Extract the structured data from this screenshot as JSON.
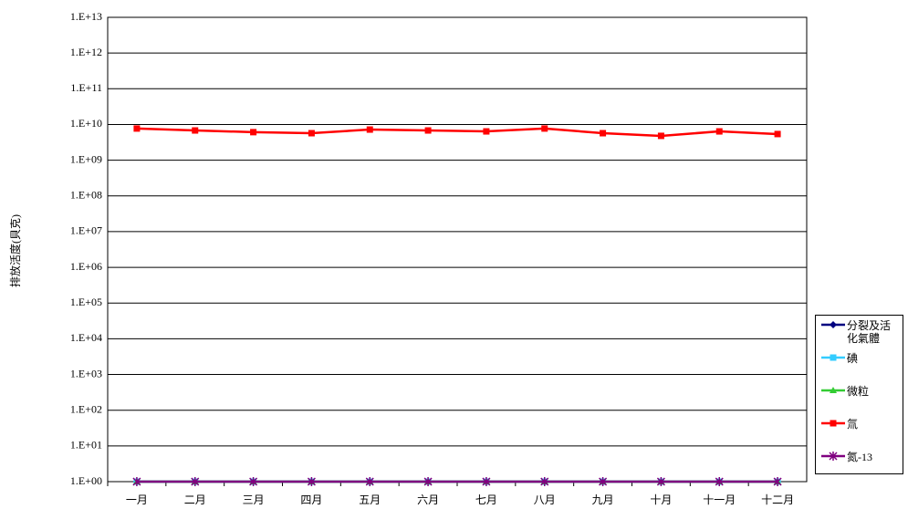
{
  "chart_data": {
    "type": "line",
    "y_label": "排放活度(貝克)",
    "categories": [
      "一月",
      "二月",
      "三月",
      "四月",
      "五月",
      "六月",
      "七月",
      "八月",
      "九月",
      "十月",
      "十一月",
      "十二月"
    ],
    "log_y": true,
    "grid": true,
    "legend": "right",
    "ylim": [
      1,
      10000000000000
    ],
    "yticks": [
      {
        "value": 1,
        "label": "1.E+00"
      },
      {
        "value": 10,
        "label": "1.E+01"
      },
      {
        "value": 100,
        "label": "1.E+02"
      },
      {
        "value": 1000,
        "label": "1.E+03"
      },
      {
        "value": 10000,
        "label": "1.E+04"
      },
      {
        "value": 100000,
        "label": "1.E+05"
      },
      {
        "value": 1000000,
        "label": "1.E+06"
      },
      {
        "value": 10000000,
        "label": "1.E+07"
      },
      {
        "value": 100000000,
        "label": "1.E+08"
      },
      {
        "value": 1000000000,
        "label": "1.E+09"
      },
      {
        "value": 10000000000,
        "label": "1.E+10"
      },
      {
        "value": 100000000000,
        "label": "1.E+11"
      },
      {
        "value": 1000000000000,
        "label": "1.E+12"
      },
      {
        "value": 10000000000000,
        "label": "1.E+13"
      }
    ],
    "series": [
      {
        "name": "分裂及活化氣體",
        "color": "#000080",
        "marker": "diamond",
        "values": [
          1,
          1,
          1,
          1,
          1,
          1,
          1,
          1,
          1,
          1,
          1,
          1
        ]
      },
      {
        "name": "碘",
        "color": "#33ccff",
        "marker": "square",
        "values": [
          1,
          1,
          1,
          1,
          1,
          1,
          1,
          1,
          1,
          1,
          1,
          1
        ]
      },
      {
        "name": "微粒",
        "color": "#33cc33",
        "marker": "triangle",
        "values": [
          1,
          1,
          1,
          1,
          1,
          1,
          1,
          1,
          1,
          1,
          1,
          1
        ]
      },
      {
        "name": "氚",
        "color": "#ff0000",
        "marker": "square",
        "values": [
          7700000000,
          6800000000,
          6100000000,
          5700000000,
          7200000000,
          6800000000,
          6400000000,
          7700000000,
          5700000000,
          4800000000,
          6400000000,
          5400000000
        ]
      },
      {
        "name": "氮-13",
        "color": "#800080",
        "marker": "star",
        "values": [
          1,
          1,
          1,
          1,
          1,
          1,
          1,
          1,
          1,
          1,
          1,
          1
        ]
      }
    ]
  }
}
